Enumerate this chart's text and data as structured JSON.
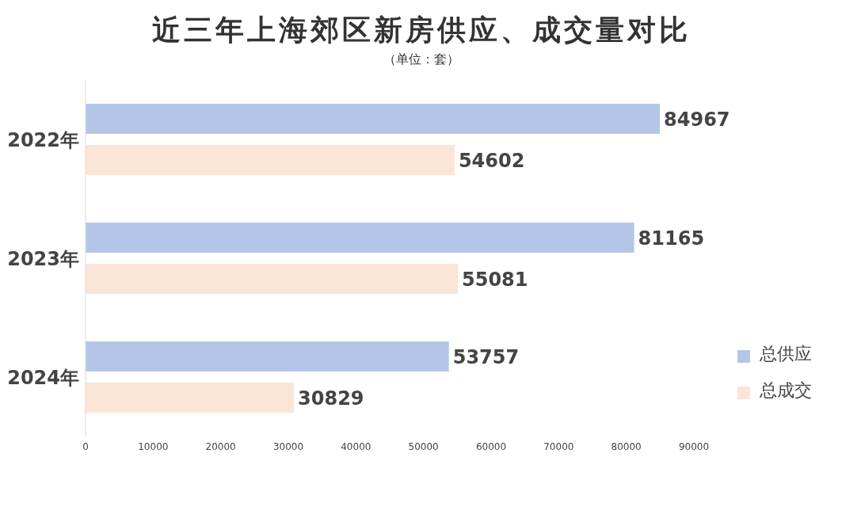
{
  "chart_data": {
    "type": "bar",
    "orientation": "horizontal",
    "title": "近三年上海郊区新房供应、成交量对比",
    "subtitle": "（单位：套）",
    "categories": [
      "2022年",
      "2023年",
      "2024年"
    ],
    "series": [
      {
        "name": "总供应",
        "color": "#b4c6e7",
        "values": [
          84967,
          81165,
          53757
        ]
      },
      {
        "name": "总成交",
        "color": "#fbe5d6",
        "values": [
          54602,
          55081,
          30829
        ]
      }
    ],
    "xlim": [
      0,
      90000
    ],
    "xticks": [
      0,
      10000,
      20000,
      30000,
      40000,
      50000,
      60000,
      70000,
      80000,
      90000
    ],
    "data_labels": true,
    "grid": false,
    "legend": "bottom right"
  }
}
